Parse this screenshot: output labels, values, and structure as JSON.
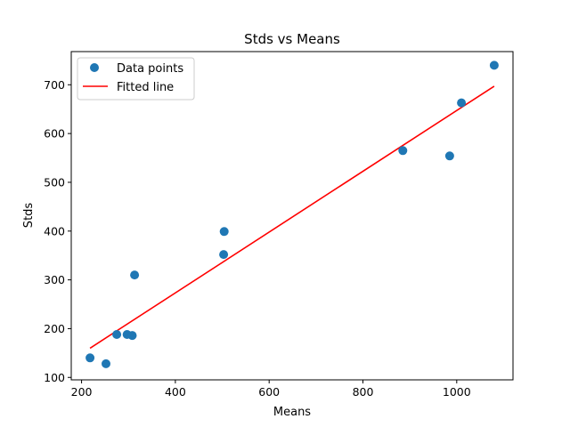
{
  "chart_data": {
    "type": "scatter",
    "title": "Stds vs Means",
    "xlabel": "Means",
    "ylabel": "Stds",
    "xlim": [
      178,
      1120
    ],
    "ylim": [
      95,
      768
    ],
    "xticks": [
      200,
      400,
      600,
      800,
      1000
    ],
    "yticks": [
      100,
      200,
      300,
      400,
      500,
      600,
      700
    ],
    "grid": false,
    "legend_position": "top-left",
    "colors": {
      "points": "#1f77b4",
      "line": "#ff0000"
    },
    "series": [
      {
        "name": "Data points",
        "kind": "scatter",
        "x": [
          218,
          252,
          275,
          297,
          308,
          313,
          503,
          504,
          885,
          985,
          1010,
          1080
        ],
        "y": [
          140,
          128,
          188,
          188,
          186,
          310,
          352,
          399,
          565,
          554,
          663,
          740
        ]
      },
      {
        "name": "Fitted line",
        "kind": "line",
        "x": [
          218,
          1080
        ],
        "y": [
          160,
          697
        ]
      }
    ]
  }
}
